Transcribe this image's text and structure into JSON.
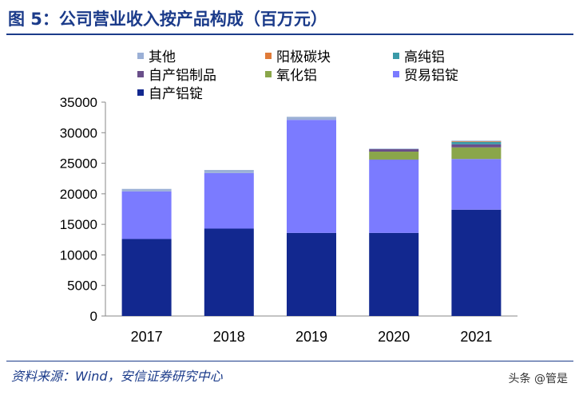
{
  "title": "图 5：公司营业收入按产品构成（百万元）",
  "source": "资料来源：Wind，安信证券研究中心",
  "watermark": "头条 @管是",
  "chart_data": {
    "type": "bar",
    "stacked": true,
    "categories": [
      "2017",
      "2018",
      "2019",
      "2020",
      "2021"
    ],
    "ylim": [
      0,
      35000
    ],
    "yticks": [
      0,
      5000,
      10000,
      15000,
      20000,
      25000,
      30000,
      35000
    ],
    "grid": false,
    "legend_position": "top",
    "series": [
      {
        "name": "自产铝锭",
        "color": "#12288f",
        "values": [
          12600,
          14300,
          13600,
          13600,
          17400
        ]
      },
      {
        "name": "贸易铝锭",
        "color": "#7b7bff",
        "values": [
          7800,
          9100,
          18500,
          12000,
          8300
        ]
      },
      {
        "name": "氧化铝",
        "color": "#8aa64a",
        "values": [
          0,
          0,
          0,
          1300,
          1900
        ]
      },
      {
        "name": "自产铝制品",
        "color": "#6a4f8a",
        "values": [
          0,
          0,
          0,
          400,
          500
        ]
      },
      {
        "name": "高纯铝",
        "color": "#3a9aa8",
        "values": [
          0,
          0,
          0,
          0,
          400
        ]
      },
      {
        "name": "阳极碳块",
        "color": "#e07b39",
        "values": [
          0,
          0,
          0,
          0,
          100
        ]
      },
      {
        "name": "其他",
        "color": "#9bb0d6",
        "values": [
          400,
          500,
          500,
          100,
          100
        ]
      }
    ],
    "legend_order": [
      "其他",
      "阳极碳块",
      "高纯铝",
      "自产铝制品",
      "氧化铝",
      "贸易铝锭",
      "自产铝锭"
    ]
  }
}
